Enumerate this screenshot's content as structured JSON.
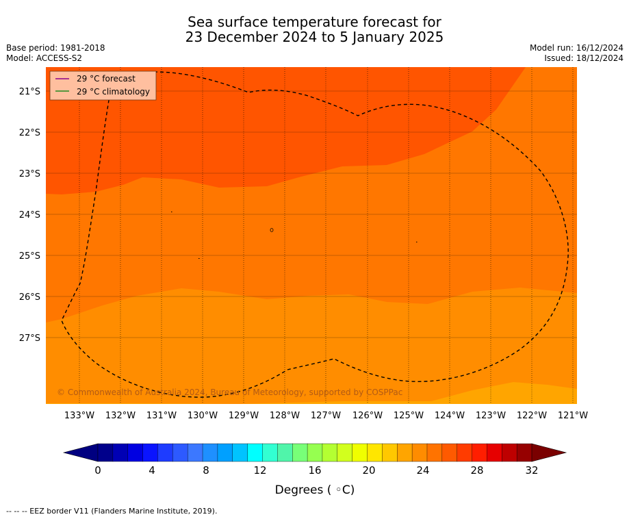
{
  "header": {
    "title_line1": "Sea surface temperature forecast for",
    "title_line2": "23 December 2024 to 5 January 2025",
    "base_period": "Base period: 1981-2018",
    "model": "Model: ACCESS-S2",
    "model_run": "Model run: 16/12/2024",
    "issued": "Issued: 18/12/2024"
  },
  "map": {
    "legend": {
      "forecast_label": "29 °C  forecast",
      "climatology_label": "29 °C  climatology",
      "forecast_color": "#8b008b",
      "climatology_color": "#1f8a1f"
    },
    "copyright": "© Commonwealth of Australia 2024, Bureau of Meteorology, supported by COSPPac",
    "lat_labels": [
      "21°S",
      "22°S",
      "23°S",
      "24°S",
      "25°S",
      "26°S",
      "27°S"
    ],
    "lon_labels": [
      "133°W",
      "132°W",
      "131°W",
      "130°W",
      "129°W",
      "128°W",
      "127°W",
      "126°W",
      "125°W",
      "124°W",
      "123°W",
      "122°W",
      "121°W"
    ],
    "region_colors": {
      "above_28": "#ff5500",
      "27_to_28": "#ff7700",
      "26_to_27": "#ff8d00",
      "25_to_26": "#ffa500"
    },
    "eez_line_style": "dashed black"
  },
  "colorbar": {
    "ticks": [
      "0",
      "4",
      "8",
      "12",
      "16",
      "20",
      "24",
      "28",
      "32"
    ],
    "label": "Degrees ( ◦C)",
    "colors": [
      "#00008b",
      "#0000b4",
      "#0000e1",
      "#0a14ff",
      "#1e3cff",
      "#2d5aff",
      "#3c78ff",
      "#1e90ff",
      "#00a0ff",
      "#00c3ff",
      "#00ffff",
      "#32ffd2",
      "#50f5aa",
      "#78ff78",
      "#96ff50",
      "#b4ff32",
      "#d2ff1e",
      "#f0ff00",
      "#ffe600",
      "#ffc800",
      "#ffa500",
      "#ff8c00",
      "#ff7300",
      "#ff5a00",
      "#ff3c00",
      "#ff1e00",
      "#e60000",
      "#be0000",
      "#960000"
    ],
    "under_color": "#000080",
    "over_color": "#7a0000"
  },
  "footer": {
    "eez_note": "--  --  -- EEZ border V11 (Flanders Marine Institute, 2019)."
  }
}
